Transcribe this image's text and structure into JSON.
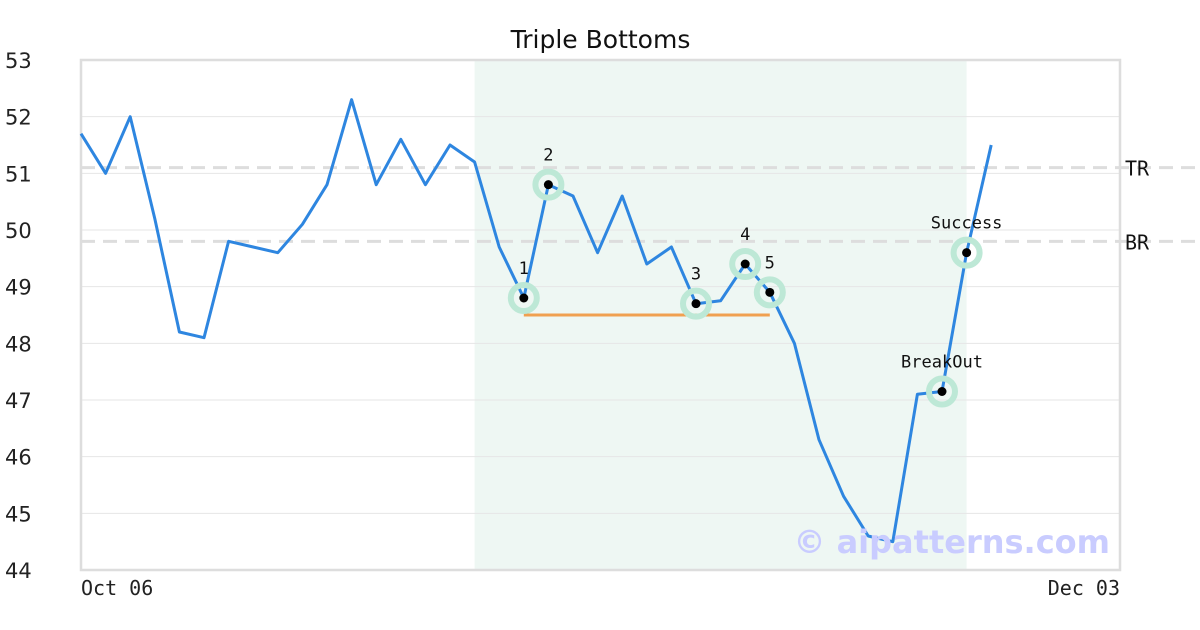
{
  "chart_data": {
    "type": "line",
    "title": "Triple Bottoms",
    "ylim": [
      44,
      53
    ],
    "y_ticks": [
      "44",
      "45",
      "46",
      "47",
      "48",
      "49",
      "50",
      "51",
      "52",
      "53"
    ],
    "x_tick_labels": [
      "Oct 06",
      "Dec 03"
    ],
    "grid": "horizontal",
    "series": [
      {
        "color": "#2e86e0",
        "values": [
          51.7,
          51.0,
          52.0,
          50.2,
          48.2,
          48.1,
          49.8,
          49.7,
          49.6,
          50.1,
          50.8,
          52.3,
          50.8,
          51.6,
          50.8,
          51.5,
          51.2,
          49.7,
          48.8,
          50.8,
          50.6,
          49.6,
          50.6,
          49.4,
          49.7,
          48.7,
          48.75,
          49.4,
          48.9,
          48.0,
          46.3,
          45.3,
          44.6,
          44.5,
          47.1,
          47.15,
          49.6,
          51.5
        ]
      }
    ],
    "highlight_range": {
      "start_index": 16,
      "end_index": 36,
      "color": "#eef7f3"
    },
    "levels": [
      {
        "label": "TR",
        "value": 51.1,
        "color": "#dddddd"
      },
      {
        "label": "BR",
        "value": 49.8,
        "color": "#dddddd"
      }
    ],
    "support_line": {
      "value": 48.5,
      "start_index": 18,
      "end_index": 28,
      "color": "#f0a050"
    },
    "points": [
      {
        "label": "1",
        "index": 18,
        "value": 48.8,
        "label_side": "above"
      },
      {
        "label": "2",
        "index": 19,
        "value": 50.8,
        "label_side": "above"
      },
      {
        "label": "3",
        "index": 25,
        "value": 48.7,
        "label_side": "above"
      },
      {
        "label": "4",
        "index": 27,
        "value": 49.4,
        "label_side": "above"
      },
      {
        "label": "5",
        "index": 28,
        "value": 48.9,
        "label_side": "above"
      },
      {
        "label": "BreakOut",
        "index": 35,
        "value": 47.15,
        "label_side": "above"
      },
      {
        "label": "Success",
        "index": 36,
        "value": 49.6,
        "label_side": "above"
      }
    ],
    "marker_halo_color": "#bde8d6",
    "watermark": "© aipatterns.com"
  }
}
